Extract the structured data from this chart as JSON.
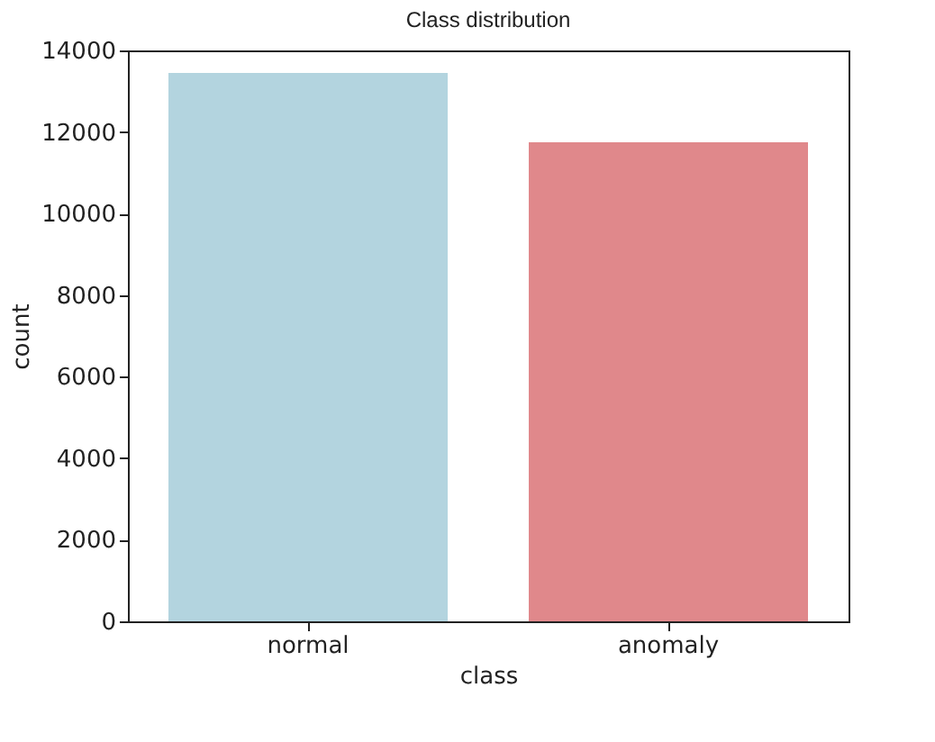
{
  "chart_data": {
    "type": "bar",
    "title": "Class distribution",
    "xlabel": "class",
    "ylabel": "count",
    "categories": [
      "normal",
      "anomaly"
    ],
    "values": [
      13450,
      11750
    ],
    "colors": [
      "#b3d4df",
      "#e0888b"
    ],
    "ylim": [
      0,
      14000
    ],
    "yticks": [
      0,
      2000,
      4000,
      6000,
      8000,
      10000,
      12000,
      14000
    ],
    "grid": false,
    "legend": false
  }
}
